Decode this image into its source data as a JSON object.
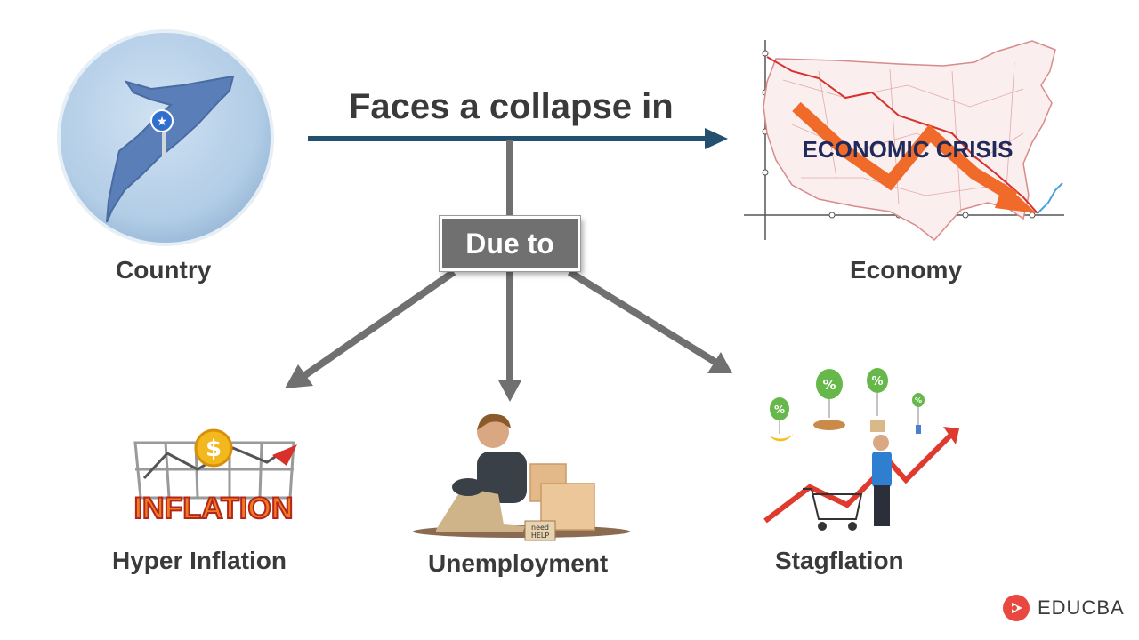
{
  "diagram": {
    "headline": "Faces a collapse in",
    "connector_label": "Due to",
    "nodes": {
      "country": "Country",
      "economy": "Economy",
      "hyper_inflation": "Hyper Inflation",
      "unemployment": "Unemployment",
      "stagflation": "Stagflation"
    },
    "illustration_text": {
      "economic_crisis": "ECONOMIC CRISIS",
      "inflation": "INFLATION",
      "sign_line1": "need",
      "sign_line2": "HELP",
      "percent": "%"
    },
    "colors": {
      "main_arrow": "#23506e",
      "branch_arrow": "#707070",
      "map_fill": "#5a7fb8",
      "circle_fill": "#b9d3ea",
      "crisis_arrow": "#f06a2a",
      "balloon": "#66b84a"
    }
  },
  "brand": {
    "name": "EDUCBA",
    "logo_color": "#e8483f"
  }
}
